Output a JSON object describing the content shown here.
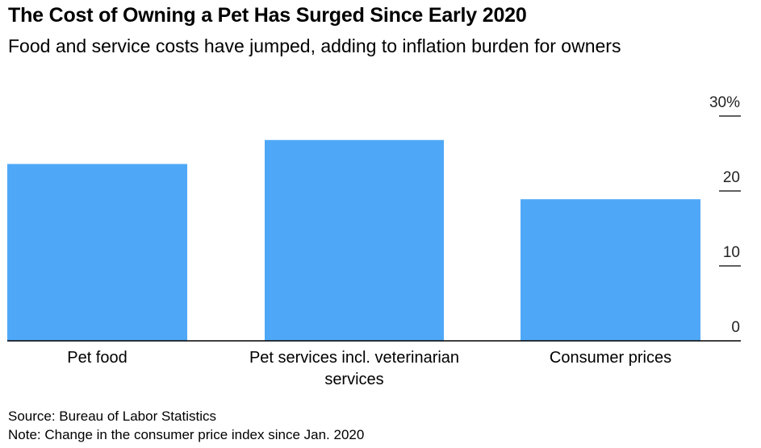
{
  "header": {
    "title": "The Cost of Owning a Pet Has Surged Since Early 2020",
    "subtitle": "Food and service costs have jumped, adding to inflation burden for owners"
  },
  "footer": {
    "source": "Source: Bureau of Labor Statistics",
    "note": "Note: Change in the consumer price index since Jan. 2020"
  },
  "colors": {
    "bar": "#4ea8f7",
    "axis": "#000000"
  },
  "chart_data": {
    "type": "bar",
    "categories": [
      [
        "Pet food"
      ],
      [
        "Pet services incl. veterinarian",
        "services"
      ],
      [
        "Consumer prices"
      ]
    ],
    "values": [
      23.6,
      26.8,
      18.9
    ],
    "yticks": [
      {
        "value": 0,
        "label": "0"
      },
      {
        "value": 10,
        "label": "10"
      },
      {
        "value": 20,
        "label": "20"
      },
      {
        "value": 30,
        "label": "30%"
      }
    ],
    "ylim": [
      0,
      30
    ],
    "axis_position": "right",
    "grid": false,
    "xlabel": "",
    "ylabel": ""
  }
}
